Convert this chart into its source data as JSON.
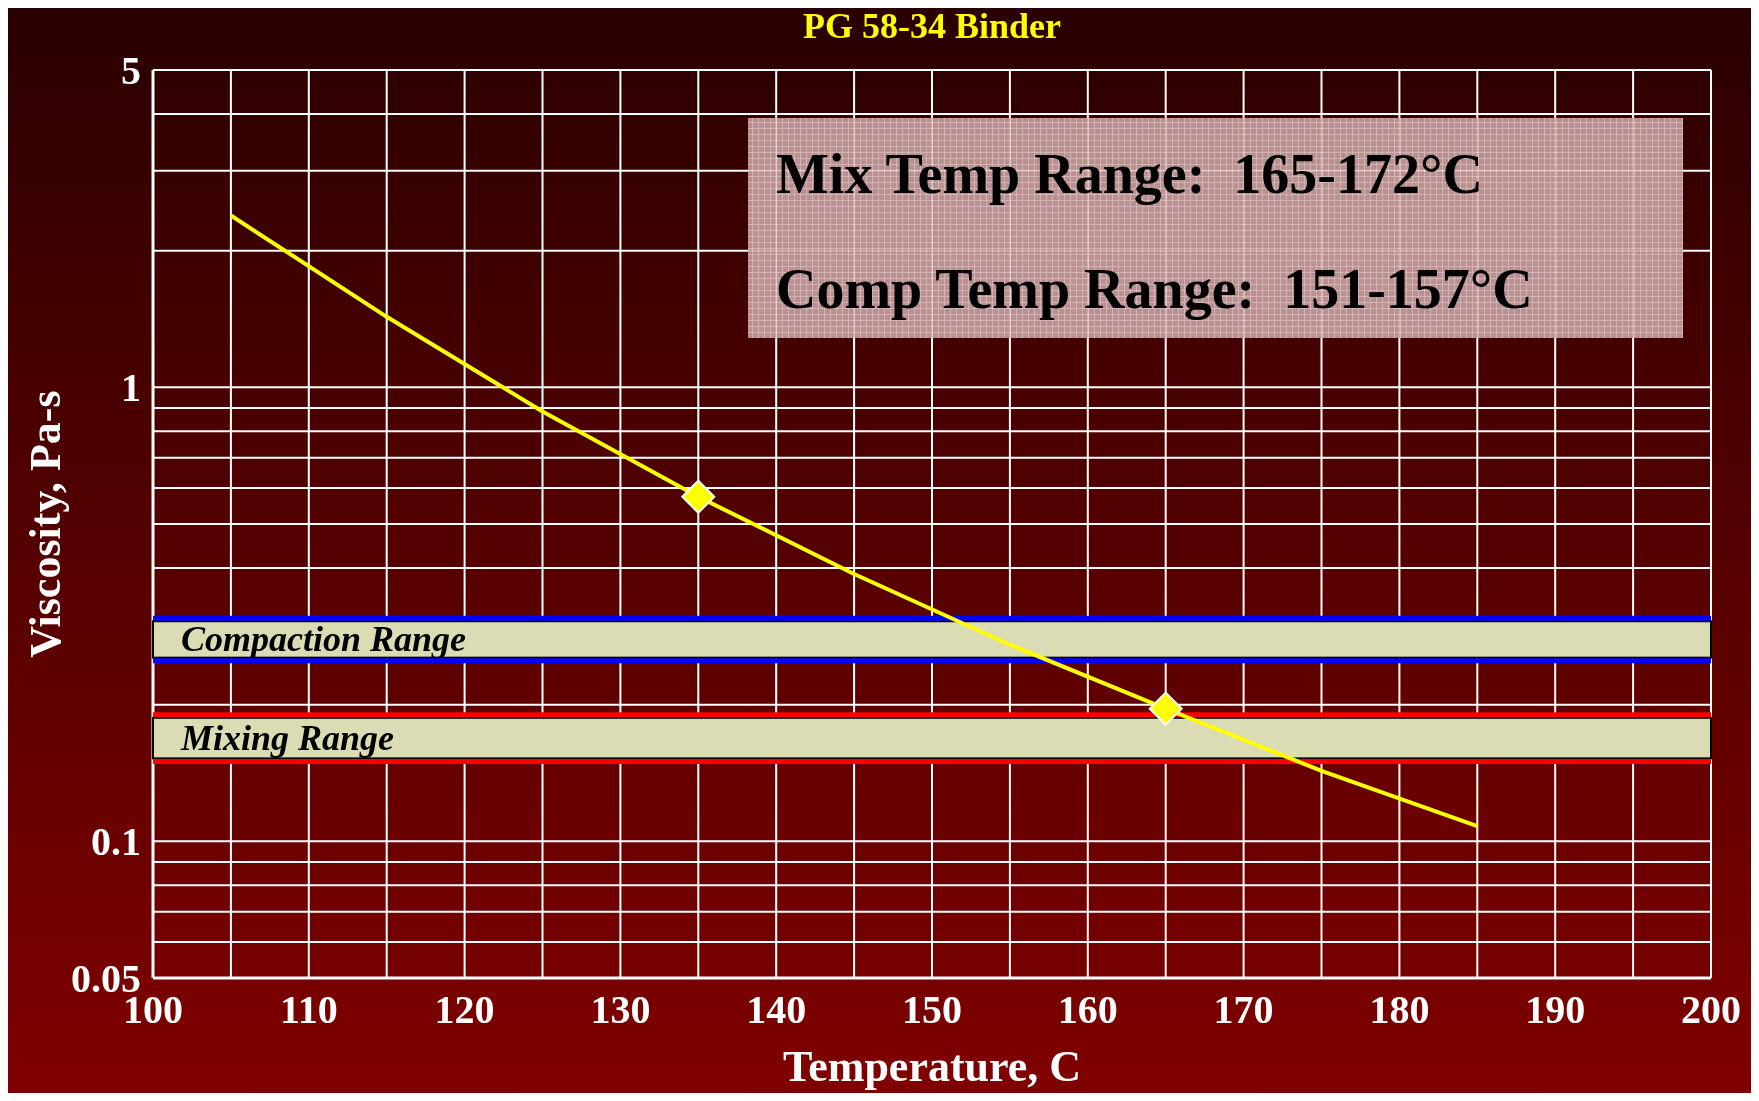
{
  "chart_data": {
    "type": "line",
    "title": "PG 58-34 Binder",
    "xlabel": "Temperature, C",
    "ylabel": "Viscosity, Pa-s",
    "log": "y",
    "grid": true,
    "xlim": [
      100,
      200
    ],
    "xticks": [
      100,
      {
        "value": 105,
        "label": null
      },
      110,
      {
        "value": 115,
        "label": null
      },
      120,
      {
        "value": 125,
        "label": null
      },
      130,
      {
        "value": 135,
        "label": null
      },
      140,
      {
        "value": 145,
        "label": null
      },
      150,
      {
        "value": 155,
        "label": null
      },
      160,
      {
        "value": 165,
        "label": null
      },
      170,
      {
        "value": 175,
        "label": null
      },
      180,
      {
        "value": 185,
        "label": null
      },
      190,
      {
        "value": 195,
        "label": null
      },
      200
    ],
    "ylim": [
      0.05,
      5
    ],
    "yticks": [
      0.05,
      {
        "value": 0.06,
        "label": null
      },
      {
        "value": 0.07,
        "label": null
      },
      {
        "value": 0.08,
        "label": null
      },
      {
        "value": 0.09,
        "label": null
      },
      0.1,
      {
        "value": 0.2,
        "label": null
      },
      {
        "value": 0.4,
        "label": null
      },
      {
        "value": 0.5,
        "label": null
      },
      {
        "value": 0.6,
        "label": null
      },
      {
        "value": 0.7,
        "label": null
      },
      {
        "value": 0.8,
        "label": null
      },
      {
        "value": 0.9,
        "label": null
      },
      1,
      {
        "value": 2,
        "label": null
      },
      {
        "value": 3,
        "label": null
      },
      {
        "value": 4,
        "label": null
      },
      5
    ],
    "series": [
      {
        "color": "#ffff00",
        "marker": "none",
        "x": [
          105,
          115,
          125,
          135,
          145,
          155,
          165,
          175,
          185
        ],
        "values": [
          2.39,
          1.43,
          0.885,
          0.574,
          0.388,
          0.271,
          0.196,
          0.143,
          0.108
        ]
      },
      {
        "type": "scatter",
        "color": "#ffff00",
        "marker": "diamond",
        "x": [
          135,
          165
        ],
        "values": [
          0.574,
          0.196
        ]
      }
    ],
    "bands": [
      {
        "axis": "y",
        "from": 0.25,
        "to": 0.31,
        "label": "Compaction Range",
        "color": "#dcdcb4"
      },
      {
        "axis": "y",
        "from": 0.15,
        "to": 0.19,
        "label": "Mixing Range",
        "color": "#dcdcb4"
      }
    ],
    "ref_lines": [
      {
        "axis": "y",
        "value": 0.31,
        "color": "#0000ff"
      },
      {
        "axis": "y",
        "value": 0.25,
        "color": "#0000ff"
      },
      {
        "axis": "y",
        "value": 0.19,
        "color": "#ff0000"
      },
      {
        "axis": "y",
        "value": 0.15,
        "color": "#ff0000"
      }
    ],
    "annotations": [
      "Mix Temp Range:  165-172°C",
      "Comp Temp Range:  151-157°C"
    ]
  }
}
